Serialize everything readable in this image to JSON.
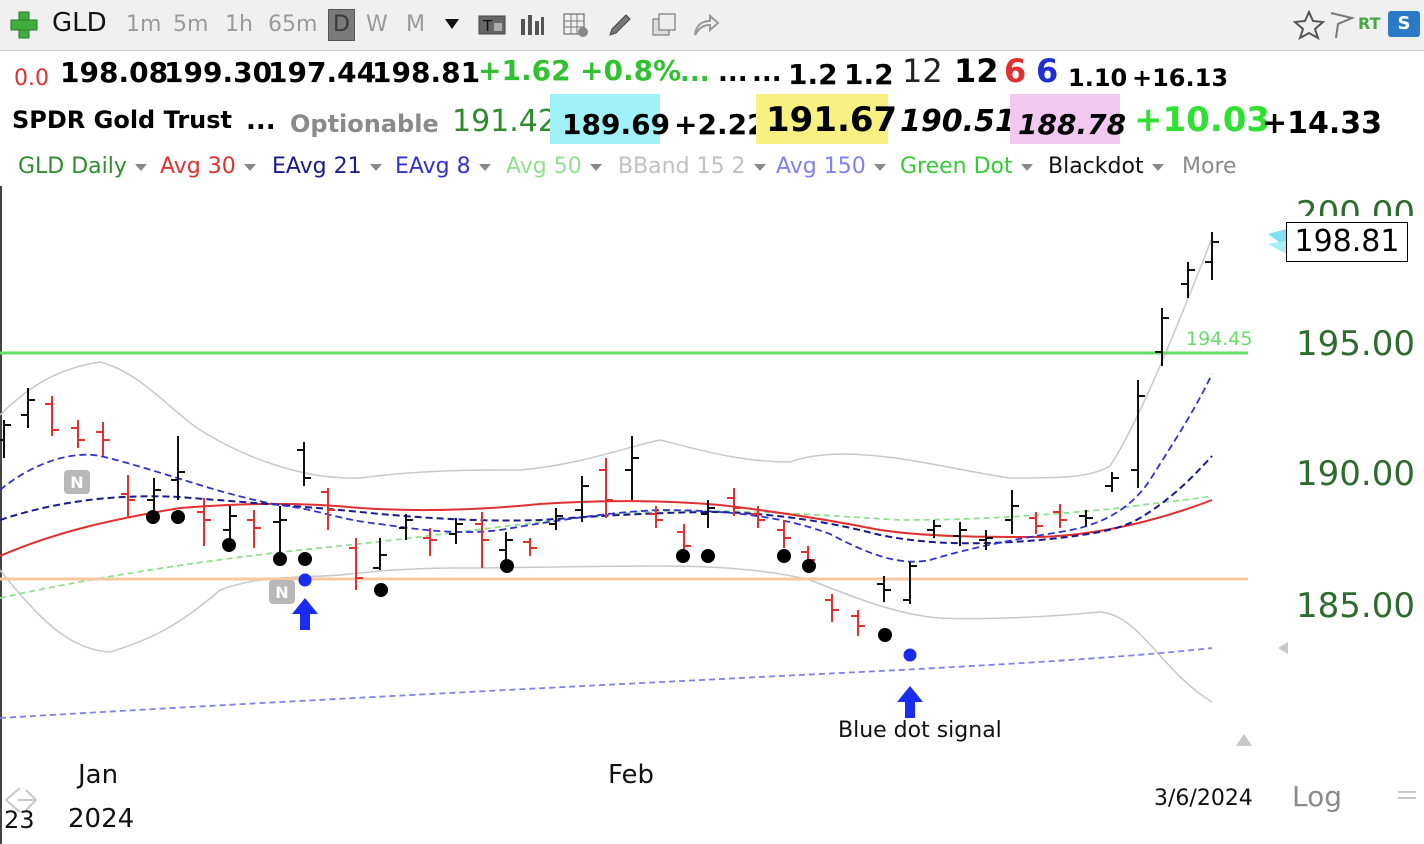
{
  "toolbar": {
    "symbol": "GLD",
    "timeframes": [
      "1m",
      "5m",
      "1h",
      "65m",
      "D",
      "W",
      "M"
    ],
    "active_timeframe": "D",
    "right_icons": [
      "star-icon",
      "flag-icon",
      "rt-icon",
      "s-icon"
    ],
    "rt_label": "RT",
    "s_label": "S"
  },
  "quote_row1": {
    "change_small": "0.0",
    "open": "198.08",
    "high": "199.30",
    "low": "197.44",
    "close": "198.81",
    "change": "+1.62",
    "change_pct": "+0.8%",
    "dots1": "...",
    "dots2": "...",
    "dots3": "...",
    "v1": "1.2",
    "v2": "1.2",
    "n1": "12",
    "n2": "12",
    "n3": "6",
    "n4": "6",
    "v3": "1.10",
    "v4": "+16.13"
  },
  "quote_row2": {
    "name": "SPDR Gold Trust",
    "dots": "...",
    "optionable": "Optionable",
    "p1": "191.42",
    "p2": "189.69",
    "p3": "+2.22",
    "p4": "191.67",
    "p5": "190.51",
    "p6": "188.78",
    "p7": "+10.03",
    "p8": "+14.33"
  },
  "studies": [
    {
      "label": "GLD Daily",
      "color": "#2e8b2e"
    },
    {
      "label": "Avg 30",
      "color": "#e03030"
    },
    {
      "label": "EAvg 21",
      "color": "#1a1a8c"
    },
    {
      "label": "EAvg 8",
      "color": "#3333cc"
    },
    {
      "label": "Avg 50",
      "color": "#90e090"
    },
    {
      "label": "BBand 15 2",
      "color": "#c0c0c0"
    },
    {
      "label": "Avg 150",
      "color": "#8080f0"
    },
    {
      "label": "Green Dot",
      "color": "#33cc33"
    },
    {
      "label": "Blackdot",
      "color": "#111111"
    }
  ],
  "more_label": "More",
  "price_axis": [
    "200.00",
    "195.00",
    "190.00",
    "185.00"
  ],
  "last_price": "198.81",
  "green_line_label": "194.45",
  "annotation": "Blue dot signal",
  "n_marker": "N",
  "x_axis": {
    "month1": "Jan",
    "month2": "Feb",
    "year": "2024",
    "left_partial": "23",
    "date": "3/6/2024"
  },
  "log_label": "Log",
  "colors": {
    "up": "#111111",
    "down": "#e03030",
    "green_line": "#66dd66",
    "orange_line": "#f5c8a0",
    "blue_dot": "#1a2cf0",
    "cyan_highlight": "#a0f0f8",
    "yellow_highlight": "#f8f080",
    "pink_highlight": "#f0c8f0"
  }
}
